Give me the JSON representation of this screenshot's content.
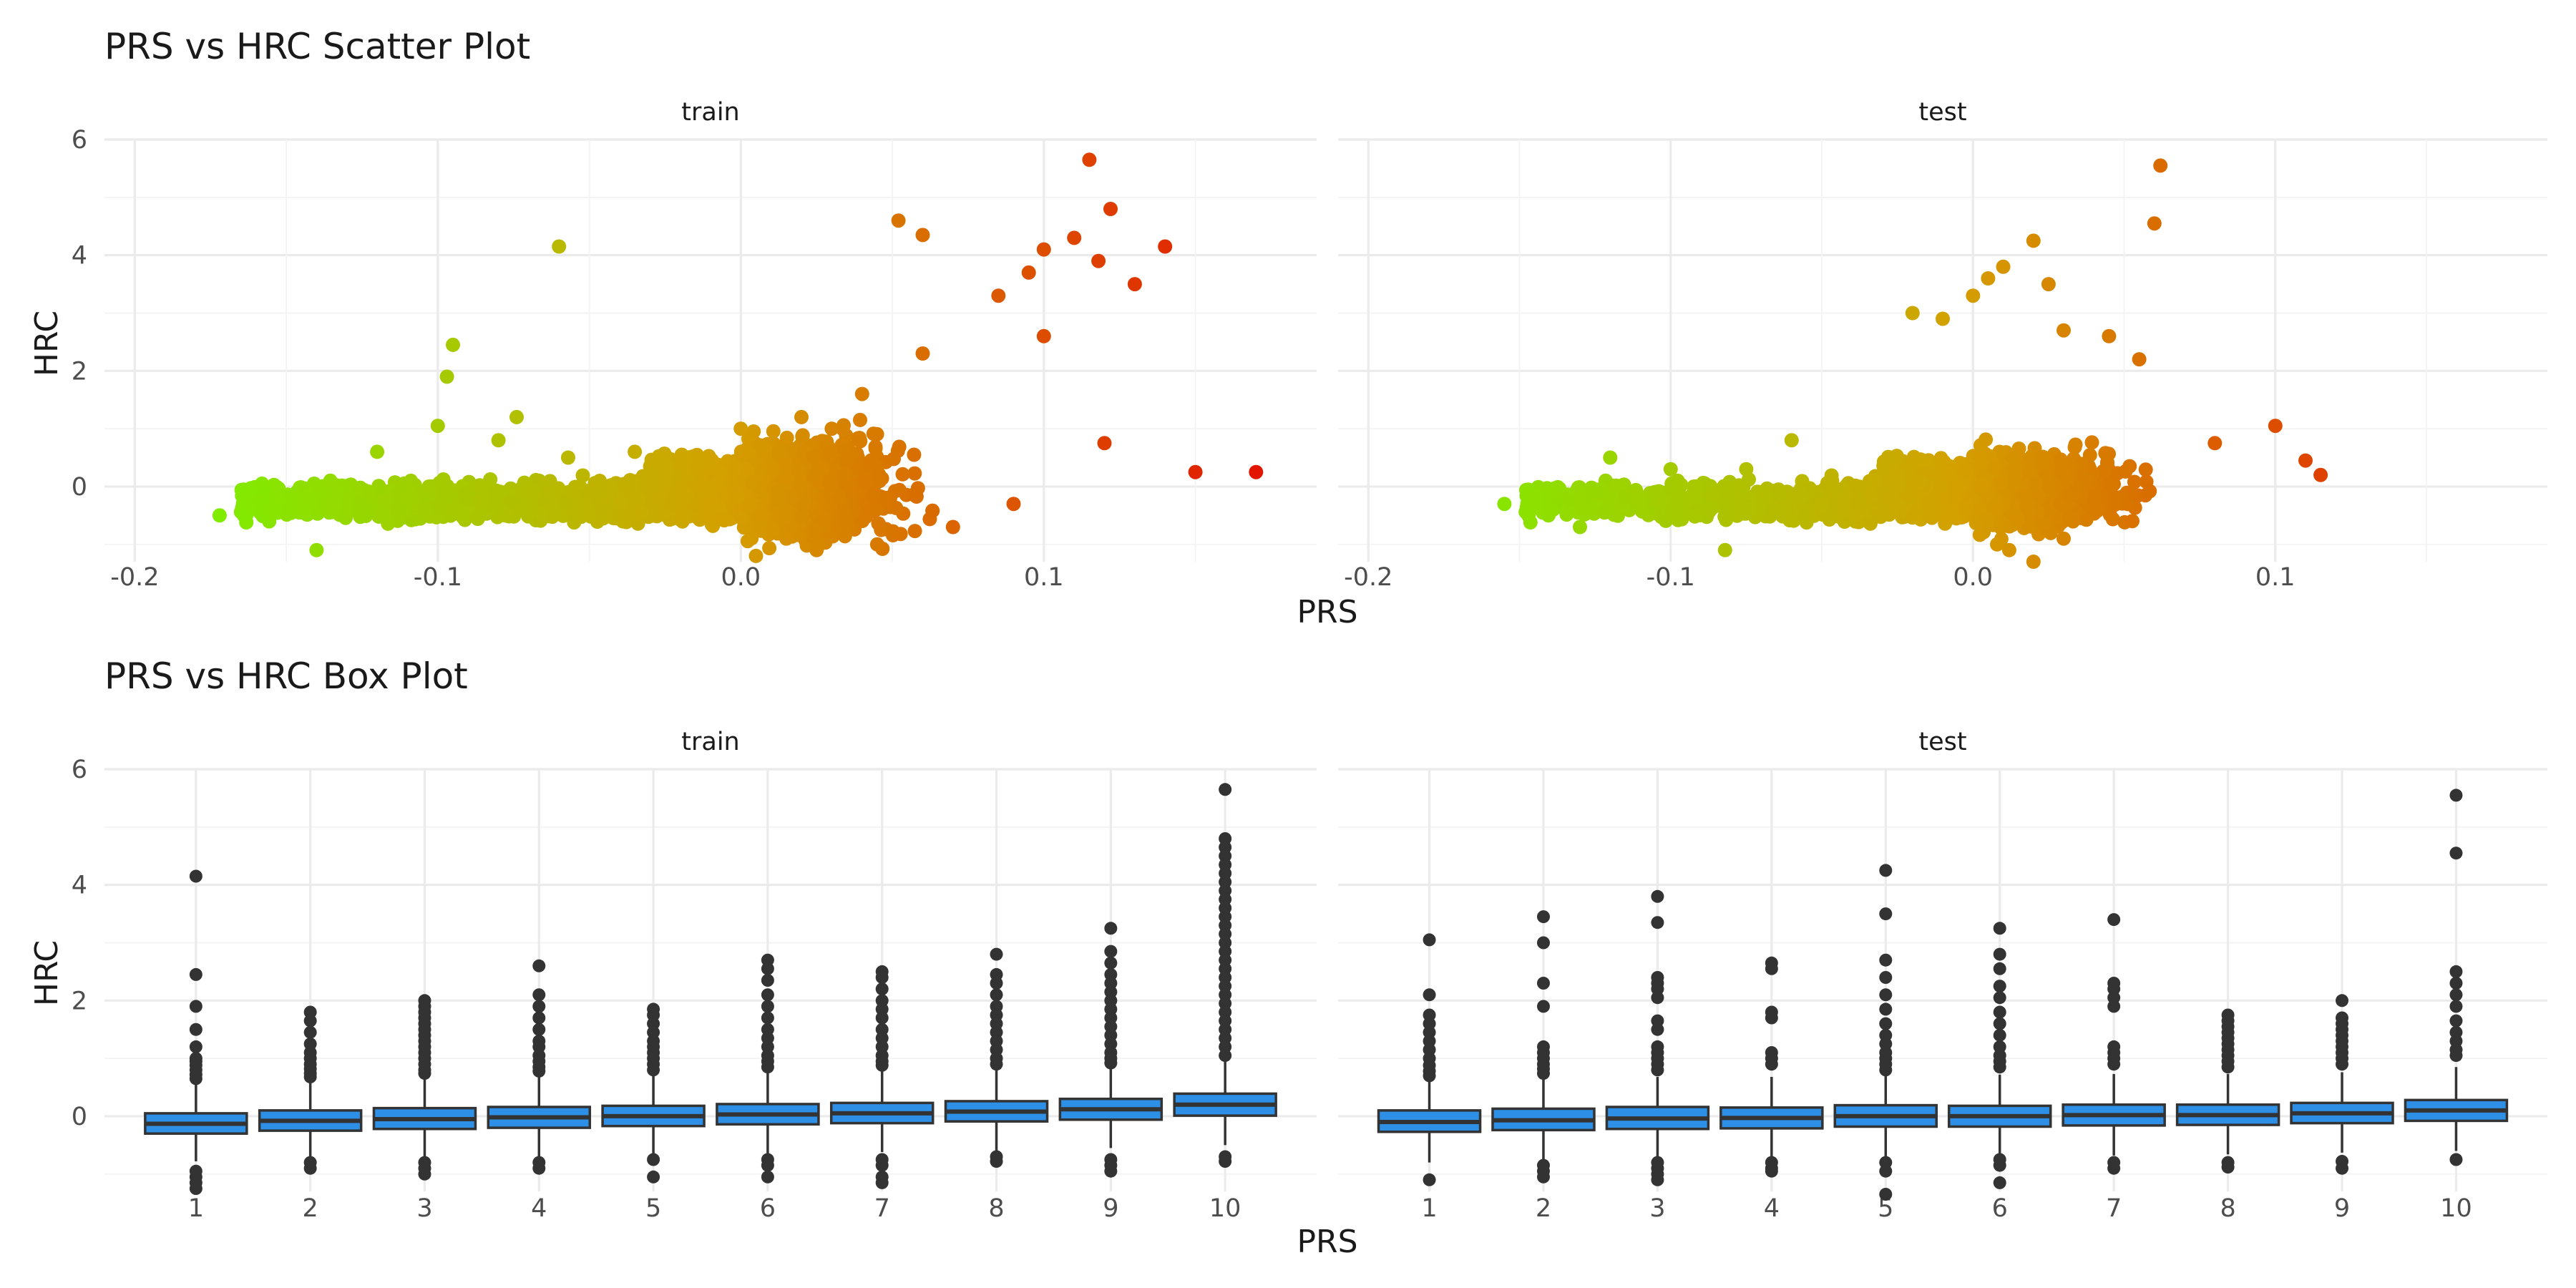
{
  "chart_data": [
    {
      "type": "scatter",
      "title": "PRS vs HRC Scatter Plot",
      "xlabel": "PRS",
      "ylabel": "HRC",
      "facets": [
        "train",
        "test"
      ],
      "xlim": [
        -0.21,
        0.19
      ],
      "ylim": [
        -1.3,
        6.0
      ],
      "x_ticks": [
        "-0.2",
        "-0.1",
        "0.0",
        "0.1"
      ],
      "x_tick_values": [
        -0.2,
        -0.1,
        0.0,
        0.1
      ],
      "y_ticks": [
        "0",
        "2",
        "4",
        "6"
      ],
      "y_tick_values": [
        0,
        2,
        4,
        6
      ],
      "color_scale": {
        "low": "#7cf000",
        "mid": "#d4a000",
        "high": "#e21600",
        "domain": [
          -0.18,
          0.17
        ]
      },
      "grid": true,
      "legend": "none",
      "series": [
        {
          "facet": "train",
          "x": [
            -0.172,
            -0.158,
            -0.145,
            -0.14,
            -0.097,
            -0.095,
            -0.06,
            -0.074,
            -0.057,
            -0.035,
            0.0,
            0.02,
            0.052,
            0.06,
            0.085,
            0.095,
            0.1,
            0.11,
            0.115,
            0.118,
            0.122,
            0.13,
            0.14,
            0.15,
            0.17,
            0.12,
            0.1,
            0.06,
            0.04,
            0.03,
            -0.12,
            -0.1,
            -0.08,
            -0.05,
            0.005,
            0.015,
            0.025,
            0.045,
            0.07,
            0.09
          ],
          "y": [
            -0.5,
            0.05,
            -0.4,
            -1.1,
            1.9,
            2.45,
            4.15,
            1.2,
            0.5,
            0.6,
            1.0,
            1.2,
            4.6,
            4.35,
            3.3,
            3.7,
            4.1,
            4.3,
            5.65,
            3.9,
            4.8,
            3.5,
            4.15,
            0.25,
            0.25,
            0.75,
            2.6,
            2.3,
            1.6,
            1.0,
            0.6,
            1.05,
            0.8,
            -0.5,
            -1.2,
            -0.9,
            -1.1,
            -1.0,
            -0.7,
            -0.3
          ]
        },
        {
          "facet": "test",
          "x": [
            -0.155,
            -0.14,
            -0.13,
            -0.12,
            -0.1,
            -0.082,
            -0.075,
            -0.06,
            -0.02,
            -0.01,
            0.0,
            0.005,
            0.01,
            0.02,
            0.025,
            0.03,
            0.045,
            0.055,
            0.06,
            0.062,
            0.08,
            0.1,
            0.11,
            0.115,
            0.02,
            0.012,
            0.008,
            0.03
          ],
          "y": [
            -0.3,
            -0.4,
            -0.7,
            0.5,
            0.3,
            -1.1,
            0.3,
            0.8,
            3.0,
            2.9,
            3.3,
            3.6,
            3.8,
            4.25,
            3.5,
            2.7,
            2.6,
            2.2,
            4.55,
            5.55,
            0.75,
            1.05,
            0.45,
            0.2,
            -1.3,
            -1.1,
            -1.0,
            -0.9
          ]
        }
      ]
    },
    {
      "type": "box",
      "title": "PRS vs HRC Box Plot",
      "xlabel": "PRS",
      "ylabel": "HRC",
      "facets": [
        "train",
        "test"
      ],
      "categories": [
        "1",
        "2",
        "3",
        "4",
        "5",
        "6",
        "7",
        "8",
        "9",
        "10"
      ],
      "ylim": [
        -1.3,
        6.0
      ],
      "y_ticks": [
        "0",
        "2",
        "4",
        "6"
      ],
      "y_tick_values": [
        0,
        2,
        4,
        6
      ],
      "fill_color": "#2e8fe6",
      "outline_color": "#333333",
      "grid": true,
      "series": [
        {
          "facet": "train",
          "boxes": [
            {
              "q1": -0.3,
              "median": -0.13,
              "q3": 0.05,
              "lower": -0.78,
              "upper": 0.55,
              "outliers": [
                4.15,
                2.45,
                1.9,
                1.5,
                1.2,
                1.0,
                0.95,
                0.88,
                0.8,
                0.72,
                0.65,
                -0.95,
                -1.05,
                -1.15,
                -1.25
              ]
            },
            {
              "q1": -0.25,
              "median": -0.08,
              "q3": 0.1,
              "lower": -0.75,
              "upper": 0.6,
              "outliers": [
                1.8,
                1.65,
                1.45,
                1.25,
                1.1,
                1.0,
                0.9,
                0.82,
                0.74,
                0.68,
                -0.8,
                -0.9
              ]
            },
            {
              "q1": -0.22,
              "median": -0.05,
              "q3": 0.14,
              "lower": -0.75,
              "upper": 0.68,
              "outliers": [
                2.0,
                1.9,
                1.8,
                1.7,
                1.6,
                1.5,
                1.4,
                1.3,
                1.2,
                1.1,
                1.0,
                0.9,
                0.8,
                0.74,
                -0.8,
                -0.9,
                -1.0
              ]
            },
            {
              "q1": -0.2,
              "median": -0.02,
              "q3": 0.16,
              "lower": -0.72,
              "upper": 0.7,
              "outliers": [
                2.6,
                2.1,
                1.9,
                1.7,
                1.5,
                1.3,
                1.2,
                1.05,
                0.95,
                0.85,
                0.78,
                -0.8,
                -0.9
              ]
            },
            {
              "q1": -0.17,
              "median": 0.0,
              "q3": 0.18,
              "lower": -0.68,
              "upper": 0.72,
              "outliers": [
                1.85,
                1.75,
                1.6,
                1.45,
                1.3,
                1.2,
                1.1,
                1.0,
                0.9,
                0.8,
                -0.75,
                -1.05
              ]
            },
            {
              "q1": -0.14,
              "median": 0.03,
              "q3": 0.21,
              "lower": -0.65,
              "upper": 0.75,
              "outliers": [
                2.7,
                2.55,
                2.35,
                2.1,
                1.9,
                1.7,
                1.5,
                1.35,
                1.2,
                1.05,
                0.95,
                0.85,
                -0.75,
                -0.85,
                -1.05
              ]
            },
            {
              "q1": -0.12,
              "median": 0.05,
              "q3": 0.23,
              "lower": -0.62,
              "upper": 0.78,
              "outliers": [
                2.5,
                2.4,
                2.2,
                2.0,
                1.85,
                1.7,
                1.5,
                1.35,
                1.2,
                1.05,
                0.95,
                0.88,
                -0.75,
                -0.85,
                -1.05,
                -1.15
              ]
            },
            {
              "q1": -0.09,
              "median": 0.08,
              "q3": 0.26,
              "lower": -0.6,
              "upper": 0.8,
              "outliers": [
                2.8,
                2.45,
                2.3,
                2.1,
                1.9,
                1.75,
                1.6,
                1.45,
                1.3,
                1.15,
                1.0,
                0.9,
                -0.7,
                -0.78
              ]
            },
            {
              "q1": -0.06,
              "median": 0.12,
              "q3": 0.3,
              "lower": -0.55,
              "upper": 0.85,
              "outliers": [
                3.25,
                2.85,
                2.65,
                2.45,
                2.3,
                2.15,
                2.0,
                1.85,
                1.7,
                1.55,
                1.4,
                1.25,
                1.1,
                1.0,
                0.92,
                -0.75,
                -0.85,
                -0.95
              ]
            },
            {
              "q1": 0.01,
              "median": 0.2,
              "q3": 0.39,
              "lower": -0.5,
              "upper": 0.95,
              "outliers": [
                5.65,
                4.8,
                4.65,
                4.5,
                4.35,
                4.2,
                4.05,
                3.9,
                3.75,
                3.6,
                3.45,
                3.3,
                3.15,
                3.0,
                2.85,
                2.7,
                2.55,
                2.4,
                2.25,
                2.1,
                1.95,
                1.8,
                1.65,
                1.5,
                1.35,
                1.2,
                1.05,
                -0.7,
                -0.78
              ]
            }
          ]
        },
        {
          "facet": "test",
          "boxes": [
            {
              "q1": -0.27,
              "median": -0.1,
              "q3": 0.1,
              "lower": -0.8,
              "upper": 0.6,
              "outliers": [
                3.05,
                2.1,
                1.75,
                1.6,
                1.45,
                1.3,
                1.15,
                1.0,
                0.88,
                0.78,
                0.7,
                -1.1
              ]
            },
            {
              "q1": -0.24,
              "median": -0.07,
              "q3": 0.13,
              "lower": -0.78,
              "upper": 0.65,
              "outliers": [
                3.45,
                3.0,
                2.3,
                1.9,
                1.2,
                1.1,
                1.0,
                0.9,
                0.82,
                0.74,
                -0.85,
                -0.95,
                -1.05
              ]
            },
            {
              "q1": -0.22,
              "median": -0.04,
              "q3": 0.16,
              "lower": -0.75,
              "upper": 0.68,
              "outliers": [
                3.8,
                3.35,
                2.4,
                2.3,
                2.2,
                2.05,
                1.65,
                1.5,
                1.2,
                1.1,
                1.0,
                0.9,
                0.8,
                -0.8,
                -0.9,
                -1.0,
                -1.1
              ]
            },
            {
              "q1": -0.21,
              "median": -0.03,
              "q3": 0.15,
              "lower": -0.72,
              "upper": 0.68,
              "outliers": [
                2.65,
                2.55,
                1.8,
                1.7,
                1.1,
                1.0,
                0.9,
                -0.8,
                -0.9,
                -0.95
              ]
            },
            {
              "q1": -0.18,
              "median": 0.0,
              "q3": 0.19,
              "lower": -0.7,
              "upper": 0.72,
              "outliers": [
                4.25,
                3.5,
                2.7,
                2.4,
                2.1,
                1.85,
                1.6,
                1.4,
                1.25,
                1.1,
                1.0,
                0.9,
                0.8,
                -0.8,
                -0.95,
                -1.35
              ]
            },
            {
              "q1": -0.18,
              "median": 0.0,
              "q3": 0.18,
              "lower": -0.7,
              "upper": 0.72,
              "outliers": [
                3.25,
                2.8,
                2.55,
                2.25,
                2.05,
                1.8,
                1.6,
                1.4,
                1.2,
                1.05,
                0.95,
                0.85,
                -0.75,
                -0.85,
                -1.15
              ]
            },
            {
              "q1": -0.16,
              "median": 0.02,
              "q3": 0.2,
              "lower": -0.68,
              "upper": 0.73,
              "outliers": [
                3.4,
                2.3,
                2.2,
                2.05,
                1.9,
                1.2,
                1.1,
                1.0,
                0.9,
                -0.8,
                -0.9
              ]
            },
            {
              "q1": -0.15,
              "median": 0.02,
              "q3": 0.2,
              "lower": -0.66,
              "upper": 0.73,
              "outliers": [
                1.75,
                1.65,
                1.55,
                1.45,
                1.35,
                1.25,
                1.15,
                1.05,
                0.95,
                0.85,
                -0.8,
                -0.88
              ]
            },
            {
              "q1": -0.12,
              "median": 0.05,
              "q3": 0.23,
              "lower": -0.63,
              "upper": 0.76,
              "outliers": [
                2.0,
                1.7,
                1.6,
                1.5,
                1.4,
                1.3,
                1.2,
                1.1,
                1.0,
                0.9,
                -0.78,
                -0.9
              ]
            },
            {
              "q1": -0.08,
              "median": 0.1,
              "q3": 0.28,
              "lower": -0.6,
              "upper": 0.85,
              "outliers": [
                5.55,
                4.55,
                2.5,
                2.3,
                2.1,
                1.9,
                1.65,
                1.45,
                1.3,
                1.15,
                1.05,
                -0.75
              ]
            }
          ]
        }
      ]
    }
  ]
}
